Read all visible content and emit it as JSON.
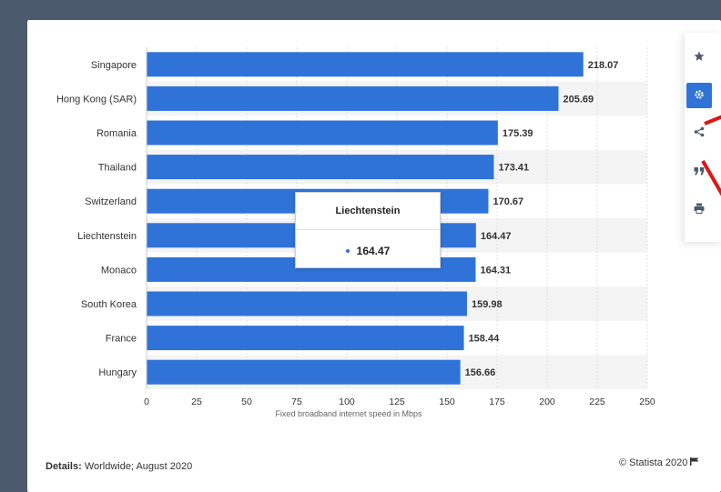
{
  "chart_data": {
    "type": "bar",
    "orientation": "horizontal",
    "categories": [
      "Singapore",
      "Hong Kong (SAR)",
      "Romania",
      "Thailand",
      "Switzerland",
      "Liechtenstein",
      "Monaco",
      "South Korea",
      "France",
      "Hungary"
    ],
    "values": [
      218.07,
      205.69,
      175.39,
      173.41,
      170.67,
      164.47,
      164.31,
      159.98,
      158.44,
      156.66
    ],
    "value_labels": [
      "218.07",
      "205.69",
      "175.39",
      "173.41",
      "170.67",
      "164.47",
      "164.31",
      "159.98",
      "158.44",
      "156.66"
    ],
    "xlabel": "Fixed broadband internet speed in Mbps",
    "xlim": [
      0,
      250
    ],
    "xticks": [
      "0",
      "25",
      "50",
      "75",
      "100",
      "125",
      "150",
      "175",
      "200",
      "225",
      "250"
    ],
    "bar_color": "#2f73d9",
    "grid": true,
    "tooltip": {
      "title": "Liechtenstein",
      "value": "164.47"
    }
  },
  "footer": {
    "details_label": "Details:",
    "details_text": "Worldwide; August 2020",
    "copyright": "© Statista 2020"
  },
  "tools": [
    {
      "icon": "star-icon"
    },
    {
      "icon": "gear-icon",
      "active": true
    },
    {
      "icon": "share-icon"
    },
    {
      "icon": "quote-icon"
    },
    {
      "icon": "print-icon"
    }
  ],
  "colors": {
    "page_bg": "#4b5a6c",
    "card_bg": "#ffffff",
    "accent": "#2f73d9",
    "annotation": "#e01414"
  }
}
